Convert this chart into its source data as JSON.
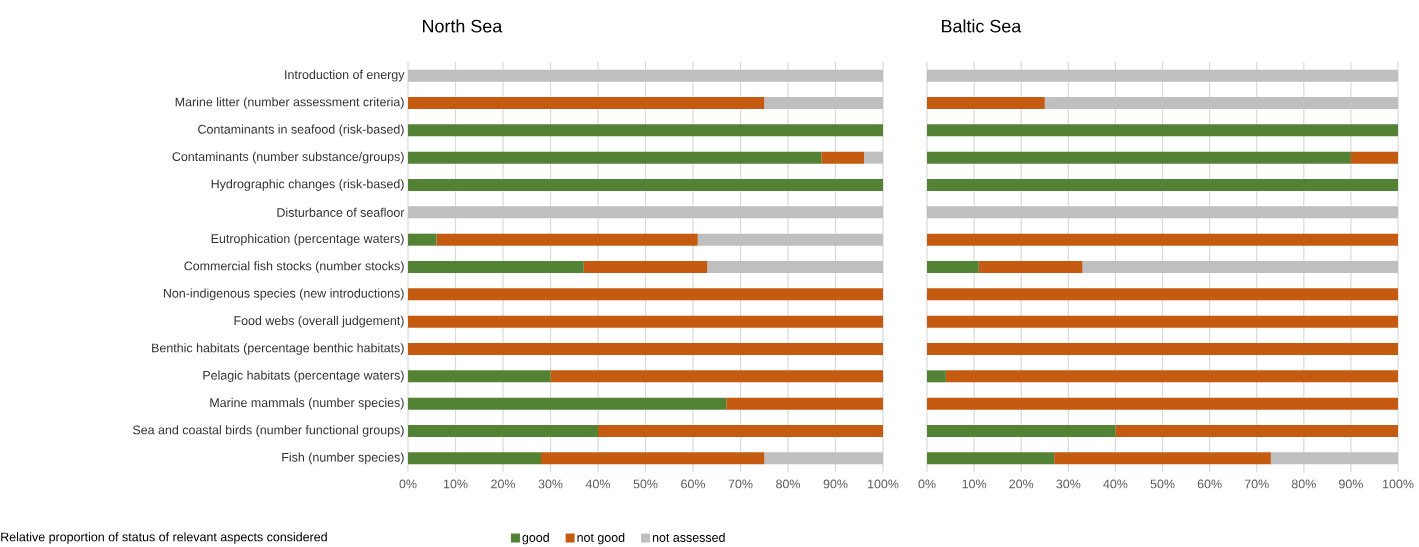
{
  "chart_data": [
    {
      "type": "bar",
      "orientation": "horizontal",
      "stacked": true,
      "title": "North Sea",
      "categories": [
        "Introduction of energy",
        "Marine litter (number assessment criteria)",
        "Contaminants in seafood (risk-based)",
        "Contaminants (number substance/groups)",
        "Hydrographic changes (risk-based)",
        "Disturbance of seafloor",
        "Eutrophication (percentage waters)",
        "Commercial fish stocks (number stocks)",
        "Non-indigenous species (new introductions)",
        "Food webs (overall judgement)",
        "Benthic habitats (percentage benthic habitats)",
        "Pelagic habitats (percentage waters)",
        "Marine mammals (number species)",
        "Sea and coastal birds (number functional groups)",
        "Fish (number species)"
      ],
      "series": [
        {
          "name": "good",
          "color": "#548235",
          "values": [
            0,
            0,
            100,
            87,
            100,
            0,
            6,
            37,
            0,
            0,
            0,
            30,
            67,
            40,
            28
          ]
        },
        {
          "name": "not good",
          "color": "#c55a11",
          "values": [
            0,
            75,
            0,
            9,
            0,
            0,
            55,
            26,
            100,
            100,
            100,
            70,
            33,
            60,
            47
          ]
        },
        {
          "name": "not assessed",
          "color": "#bfbfbf",
          "values": [
            100,
            25,
            0,
            4,
            0,
            100,
            39,
            37,
            0,
            0,
            0,
            0,
            0,
            0,
            25
          ]
        }
      ],
      "xlim": [
        0,
        100
      ],
      "xticks": [
        {
          "value": 0,
          "label": "0%"
        },
        {
          "value": 10,
          "label": "10%"
        },
        {
          "value": 20,
          "label": "20%"
        },
        {
          "value": 30,
          "label": "30%"
        },
        {
          "value": 40,
          "label": "40%"
        },
        {
          "value": 50,
          "label": "50%"
        },
        {
          "value": 60,
          "label": "60%"
        },
        {
          "value": 70,
          "label": "70%"
        },
        {
          "value": 80,
          "label": "80%"
        },
        {
          "value": 90,
          "label": "90%"
        },
        {
          "value": 100,
          "label": "100%"
        }
      ],
      "grid": "x",
      "legend": "bottom",
      "annotations": [
        "Relative proportion of status of relevant aspects considered"
      ]
    },
    {
      "type": "bar",
      "orientation": "horizontal",
      "stacked": true,
      "title": "Baltic Sea",
      "categories": [
        null,
        null,
        null,
        null,
        null,
        null,
        null,
        null,
        null,
        null,
        null,
        null,
        null,
        null,
        null
      ],
      "series": [
        {
          "color": "#548235",
          "values": [
            0,
            0,
            100,
            90,
            100,
            0,
            0,
            11,
            0,
            0,
            0,
            4,
            0,
            40,
            27
          ]
        },
        {
          "color": "#c55a11",
          "values": [
            0,
            25,
            0,
            10,
            0,
            0,
            100,
            22,
            100,
            100,
            100,
            96,
            100,
            60,
            46
          ]
        },
        {
          "color": "#bfbfbf",
          "values": [
            100,
            75,
            0,
            0,
            0,
            100,
            0,
            67,
            0,
            0,
            0,
            0,
            0,
            0,
            27
          ]
        }
      ],
      "xlim": [
        0,
        100
      ],
      "xticks": [
        {
          "value": 0,
          "label": "0%"
        },
        {
          "value": 10,
          "label": "10%"
        },
        {
          "value": 20,
          "label": "20%"
        },
        {
          "value": 30,
          "label": "30%"
        },
        {
          "value": 40,
          "label": "40%"
        },
        {
          "value": 50,
          "label": "50%"
        },
        {
          "value": 60,
          "label": "60%"
        },
        {
          "value": 70,
          "label": "70%"
        },
        {
          "value": 80,
          "label": "80%"
        },
        {
          "value": 90,
          "label": "90%"
        },
        {
          "value": 100,
          "label": "100%"
        }
      ],
      "grid": "x",
      "tick_labels": "x"
    }
  ]
}
